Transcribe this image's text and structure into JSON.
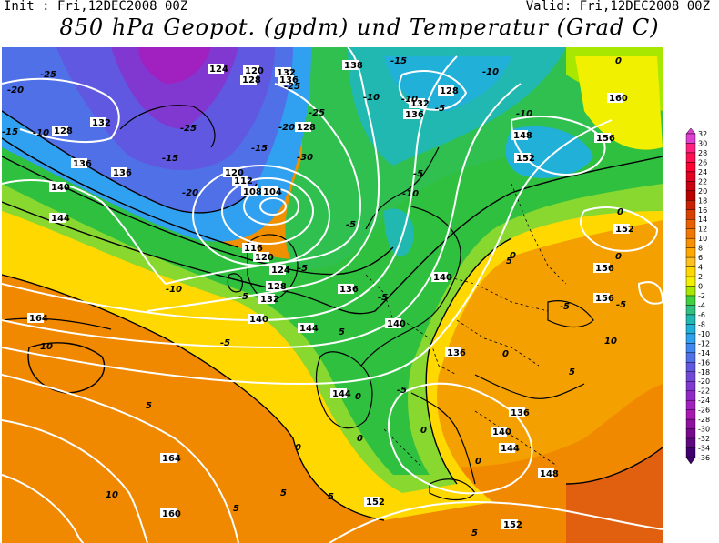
{
  "header": {
    "init": "Init : Fri,12DEC2008 00Z",
    "valid": "Valid: Fri,12DEC2008 00Z",
    "title": "850 hPa Geopot. (gpdm) und Temperatur (Grad C)"
  },
  "legend": {
    "values": [
      "32",
      "30",
      "28",
      "26",
      "24",
      "22",
      "20",
      "18",
      "16",
      "14",
      "12",
      "10",
      "8",
      "6",
      "4",
      "2",
      "0",
      "-2",
      "-4",
      "-6",
      "-8",
      "-10",
      "-12",
      "-14",
      "-16",
      "-18",
      "-20",
      "-22",
      "-24",
      "-26",
      "-28",
      "-30",
      "-32",
      "-34",
      "-36"
    ],
    "colors": [
      "#e040d0",
      "#ff2080",
      "#ff1050",
      "#ff0030",
      "#e00020",
      "#c80010",
      "#b80000",
      "#c82000",
      "#d84000",
      "#e86000",
      "#f07800",
      "#f89000",
      "#ffa800",
      "#ffc020",
      "#ffd800",
      "#f0f000",
      "#a8e800",
      "#40d040",
      "#30c080",
      "#20b8b0",
      "#20b0d8",
      "#30a0f0",
      "#4088f0",
      "#5070e8",
      "#6058e0",
      "#7048d8",
      "#8038d0",
      "#9028c8",
      "#a020c0",
      "#a818b0",
      "#9010a0",
      "#780890",
      "#600880",
      "#400070"
    ]
  },
  "map": {
    "geopotential_labels": [
      "124",
      "120",
      "128",
      "132",
      "136",
      "128",
      "138",
      "132",
      "136",
      "128",
      "160",
      "152",
      "148",
      "156",
      "120",
      "112",
      "108",
      "104",
      "116",
      "120",
      "124",
      "128",
      "132",
      "136",
      "140",
      "144",
      "140",
      "136",
      "140",
      "156",
      "152",
      "156",
      "136",
      "140",
      "144",
      "148",
      "152",
      "152",
      "144",
      "136",
      "160",
      "164",
      "164",
      "128",
      "132",
      "136",
      "140",
      "144"
    ],
    "temperature_labels": [
      "-25",
      "-20",
      "-10",
      "-15",
      "-25",
      "-20",
      "-15",
      "-25",
      "-25",
      "-20",
      "-30",
      "-15",
      "-10",
      "-10",
      "-5",
      "-10",
      "-10",
      "-15",
      "-10",
      "-5",
      "-5",
      "-5",
      "-5",
      "-10",
      "-5",
      "-5",
      "-5",
      "0",
      "5",
      "5",
      "0",
      "0",
      "0",
      "-5",
      "0",
      "0",
      "5",
      "10",
      "5",
      "10",
      "0",
      "5",
      "5",
      "5",
      "0",
      "0",
      "-5",
      "0",
      "5",
      "10"
    ]
  }
}
